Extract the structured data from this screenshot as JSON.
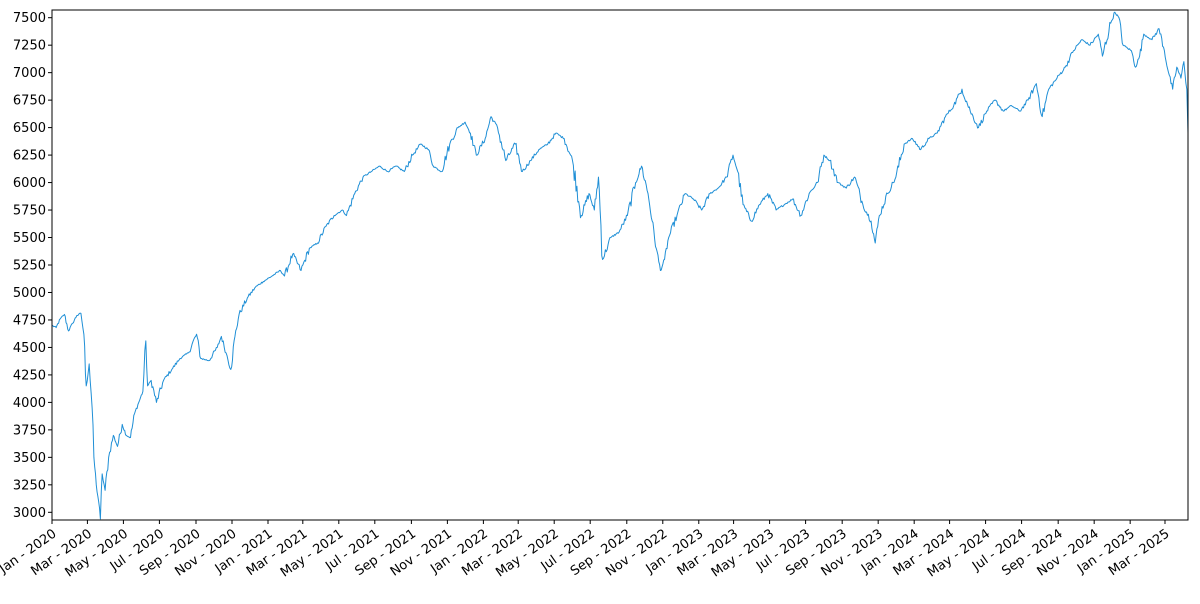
{
  "chart_data": {
    "type": "line",
    "title": "",
    "xlabel": "",
    "ylabel": "",
    "x_range": [
      "2020-01-01",
      "2025-04-09"
    ],
    "ylim": [
      2930,
      7570
    ],
    "y_ticks": [
      3000,
      3250,
      3500,
      3750,
      4000,
      4250,
      4500,
      4750,
      5000,
      5250,
      5500,
      5750,
      6000,
      6250,
      6500,
      6750,
      7000,
      7250,
      7500
    ],
    "x_ticks": [
      {
        "date": "2020-01-01",
        "label": "Jan - 2020"
      },
      {
        "date": "2020-03-01",
        "label": "Mar - 2020"
      },
      {
        "date": "2020-05-01",
        "label": "May - 2020"
      },
      {
        "date": "2020-07-01",
        "label": "Jul - 2020"
      },
      {
        "date": "2020-09-01",
        "label": "Sep - 2020"
      },
      {
        "date": "2020-11-01",
        "label": "Nov - 2020"
      },
      {
        "date": "2021-01-01",
        "label": "Jan - 2021"
      },
      {
        "date": "2021-03-01",
        "label": "Mar - 2021"
      },
      {
        "date": "2021-05-01",
        "label": "May - 2021"
      },
      {
        "date": "2021-07-01",
        "label": "Jul - 2021"
      },
      {
        "date": "2021-09-01",
        "label": "Sep - 2021"
      },
      {
        "date": "2021-11-01",
        "label": "Nov - 2021"
      },
      {
        "date": "2022-01-01",
        "label": "Jan - 2022"
      },
      {
        "date": "2022-03-01",
        "label": "Mar - 2022"
      },
      {
        "date": "2022-05-01",
        "label": "May - 2022"
      },
      {
        "date": "2022-07-01",
        "label": "Jul - 2022"
      },
      {
        "date": "2022-09-01",
        "label": "Sep - 2022"
      },
      {
        "date": "2022-11-01",
        "label": "Nov - 2022"
      },
      {
        "date": "2023-01-01",
        "label": "Jan - 2023"
      },
      {
        "date": "2023-03-01",
        "label": "Mar - 2023"
      },
      {
        "date": "2023-05-01",
        "label": "May - 2023"
      },
      {
        "date": "2023-07-01",
        "label": "Jul - 2023"
      },
      {
        "date": "2023-09-01",
        "label": "Sep - 2023"
      },
      {
        "date": "2023-11-01",
        "label": "Nov - 2023"
      },
      {
        "date": "2024-01-01",
        "label": "Jan - 2024"
      },
      {
        "date": "2024-03-01",
        "label": "Mar - 2024"
      },
      {
        "date": "2024-05-01",
        "label": "May - 2024"
      },
      {
        "date": "2024-07-01",
        "label": "Jul - 2024"
      },
      {
        "date": "2024-09-01",
        "label": "Sep - 2024"
      },
      {
        "date": "2024-11-01",
        "label": "Nov - 2024"
      },
      {
        "date": "2025-01-01",
        "label": "Jan - 2025"
      },
      {
        "date": "2025-03-01",
        "label": "Mar - 2025"
      }
    ],
    "grid": false,
    "legend": "none",
    "series": [
      {
        "color": "#1f8fd6",
        "points": [
          [
            "2020-01-01",
            4700
          ],
          [
            "2020-01-08",
            4680
          ],
          [
            "2020-01-15",
            4760
          ],
          [
            "2020-01-22",
            4800
          ],
          [
            "2020-01-29",
            4650
          ],
          [
            "2020-02-05",
            4720
          ],
          [
            "2020-02-12",
            4790
          ],
          [
            "2020-02-19",
            4810
          ],
          [
            "2020-02-24",
            4620
          ],
          [
            "2020-02-28",
            4150
          ],
          [
            "2020-03-04",
            4350
          ],
          [
            "2020-03-09",
            3950
          ],
          [
            "2020-03-12",
            3500
          ],
          [
            "2020-03-16",
            3250
          ],
          [
            "2020-03-20",
            3100
          ],
          [
            "2020-03-23",
            2940
          ],
          [
            "2020-03-26",
            3350
          ],
          [
            "2020-03-31",
            3200
          ],
          [
            "2020-04-06",
            3500
          ],
          [
            "2020-04-14",
            3700
          ],
          [
            "2020-04-21",
            3600
          ],
          [
            "2020-04-29",
            3800
          ],
          [
            "2020-05-06",
            3700
          ],
          [
            "2020-05-13",
            3680
          ],
          [
            "2020-05-20",
            3900
          ],
          [
            "2020-05-27",
            4000
          ],
          [
            "2020-06-03",
            4100
          ],
          [
            "2020-06-08",
            4560
          ],
          [
            "2020-06-11",
            4150
          ],
          [
            "2020-06-17",
            4200
          ],
          [
            "2020-06-26",
            4000
          ],
          [
            "2020-07-08",
            4200
          ],
          [
            "2020-07-22",
            4300
          ],
          [
            "2020-08-05",
            4400
          ],
          [
            "2020-08-19",
            4450
          ],
          [
            "2020-09-02",
            4620
          ],
          [
            "2020-09-09",
            4400
          ],
          [
            "2020-09-23",
            4380
          ],
          [
            "2020-10-07",
            4500
          ],
          [
            "2020-10-14",
            4600
          ],
          [
            "2020-10-22",
            4450
          ],
          [
            "2020-10-30",
            4300
          ],
          [
            "2020-11-06",
            4600
          ],
          [
            "2020-11-13",
            4800
          ],
          [
            "2020-11-27",
            4950
          ],
          [
            "2020-12-11",
            5050
          ],
          [
            "2020-12-24",
            5100
          ],
          [
            "2021-01-08",
            5150
          ],
          [
            "2021-01-22",
            5200
          ],
          [
            "2021-01-29",
            5150
          ],
          [
            "2021-02-12",
            5350
          ],
          [
            "2021-02-26",
            5200
          ],
          [
            "2021-03-12",
            5400
          ],
          [
            "2021-03-26",
            5450
          ],
          [
            "2021-04-09",
            5600
          ],
          [
            "2021-04-23",
            5700
          ],
          [
            "2021-05-07",
            5750
          ],
          [
            "2021-05-14",
            5700
          ],
          [
            "2021-05-28",
            5900
          ],
          [
            "2021-06-11",
            6050
          ],
          [
            "2021-06-25",
            6100
          ],
          [
            "2021-07-09",
            6150
          ],
          [
            "2021-07-23",
            6100
          ],
          [
            "2021-08-06",
            6150
          ],
          [
            "2021-08-20",
            6100
          ],
          [
            "2021-09-03",
            6250
          ],
          [
            "2021-09-17",
            6350
          ],
          [
            "2021-09-30",
            6300
          ],
          [
            "2021-10-08",
            6150
          ],
          [
            "2021-10-22",
            6100
          ],
          [
            "2021-11-05",
            6350
          ],
          [
            "2021-11-19",
            6500
          ],
          [
            "2021-12-01",
            6550
          ],
          [
            "2021-12-10",
            6450
          ],
          [
            "2021-12-20",
            6250
          ],
          [
            "2022-01-04",
            6400
          ],
          [
            "2022-01-14",
            6600
          ],
          [
            "2022-01-25",
            6500
          ],
          [
            "2022-02-08",
            6200
          ],
          [
            "2022-02-24",
            6350
          ],
          [
            "2022-03-08",
            6100
          ],
          [
            "2022-03-22",
            6200
          ],
          [
            "2022-04-05",
            6300
          ],
          [
            "2022-04-20",
            6350
          ],
          [
            "2022-05-04",
            6450
          ],
          [
            "2022-05-18",
            6400
          ],
          [
            "2022-06-01",
            6200
          ],
          [
            "2022-06-16",
            5700
          ],
          [
            "2022-06-29",
            5900
          ],
          [
            "2022-07-08",
            5750
          ],
          [
            "2022-07-15",
            6050
          ],
          [
            "2022-07-22",
            5300
          ],
          [
            "2022-08-05",
            5500
          ],
          [
            "2022-08-19",
            5550
          ],
          [
            "2022-09-02",
            5700
          ],
          [
            "2022-09-16",
            6000
          ],
          [
            "2022-09-26",
            6150
          ],
          [
            "2022-10-07",
            5900
          ],
          [
            "2022-10-14",
            5650
          ],
          [
            "2022-10-21",
            5400
          ],
          [
            "2022-10-28",
            5200
          ],
          [
            "2022-11-04",
            5300
          ],
          [
            "2022-11-11",
            5500
          ],
          [
            "2022-11-25",
            5700
          ],
          [
            "2022-12-09",
            5900
          ],
          [
            "2022-12-23",
            5850
          ],
          [
            "2023-01-06",
            5750
          ],
          [
            "2023-01-20",
            5900
          ],
          [
            "2023-02-03",
            5950
          ],
          [
            "2023-02-17",
            6050
          ],
          [
            "2023-02-28",
            6250
          ],
          [
            "2023-03-08",
            6100
          ],
          [
            "2023-03-17",
            5800
          ],
          [
            "2023-03-31",
            5650
          ],
          [
            "2023-04-14",
            5800
          ],
          [
            "2023-04-28",
            5900
          ],
          [
            "2023-05-12",
            5750
          ],
          [
            "2023-05-26",
            5800
          ],
          [
            "2023-06-09",
            5850
          ],
          [
            "2023-06-23",
            5700
          ],
          [
            "2023-07-07",
            5900
          ],
          [
            "2023-07-21",
            6000
          ],
          [
            "2023-08-01",
            6250
          ],
          [
            "2023-08-11",
            6200
          ],
          [
            "2023-08-25",
            6000
          ],
          [
            "2023-09-08",
            5950
          ],
          [
            "2023-09-22",
            6050
          ],
          [
            "2023-10-06",
            5800
          ],
          [
            "2023-10-20",
            5650
          ],
          [
            "2023-10-27",
            5450
          ],
          [
            "2023-11-03",
            5700
          ],
          [
            "2023-11-17",
            5900
          ],
          [
            "2023-12-01",
            6050
          ],
          [
            "2023-12-15",
            6350
          ],
          [
            "2023-12-29",
            6400
          ],
          [
            "2024-01-12",
            6300
          ],
          [
            "2024-01-26",
            6400
          ],
          [
            "2024-02-09",
            6450
          ],
          [
            "2024-02-23",
            6600
          ],
          [
            "2024-03-08",
            6700
          ],
          [
            "2024-03-22",
            6850
          ],
          [
            "2024-04-05",
            6650
          ],
          [
            "2024-04-19",
            6500
          ],
          [
            "2024-05-03",
            6650
          ],
          [
            "2024-05-17",
            6750
          ],
          [
            "2024-05-31",
            6650
          ],
          [
            "2024-06-14",
            6700
          ],
          [
            "2024-06-28",
            6650
          ],
          [
            "2024-07-12",
            6750
          ],
          [
            "2024-07-26",
            6900
          ],
          [
            "2024-08-05",
            6600
          ],
          [
            "2024-08-16",
            6850
          ],
          [
            "2024-08-30",
            6950
          ],
          [
            "2024-09-13",
            7050
          ],
          [
            "2024-09-27",
            7200
          ],
          [
            "2024-10-11",
            7300
          ],
          [
            "2024-10-25",
            7250
          ],
          [
            "2024-11-08",
            7350
          ],
          [
            "2024-11-15",
            7150
          ],
          [
            "2024-11-29",
            7450
          ],
          [
            "2024-12-06",
            7550
          ],
          [
            "2024-12-13",
            7500
          ],
          [
            "2024-12-20",
            7250
          ],
          [
            "2025-01-03",
            7200
          ],
          [
            "2025-01-10",
            7050
          ],
          [
            "2025-01-17",
            7150
          ],
          [
            "2025-01-24",
            7350
          ],
          [
            "2025-02-07",
            7300
          ],
          [
            "2025-02-19",
            7400
          ],
          [
            "2025-02-28",
            7200
          ],
          [
            "2025-03-07",
            7000
          ],
          [
            "2025-03-14",
            6850
          ],
          [
            "2025-03-21",
            7050
          ],
          [
            "2025-03-28",
            6950
          ],
          [
            "2025-04-02",
            7100
          ],
          [
            "2025-04-07",
            6850
          ],
          [
            "2025-04-09",
            6450
          ]
        ]
      }
    ]
  }
}
